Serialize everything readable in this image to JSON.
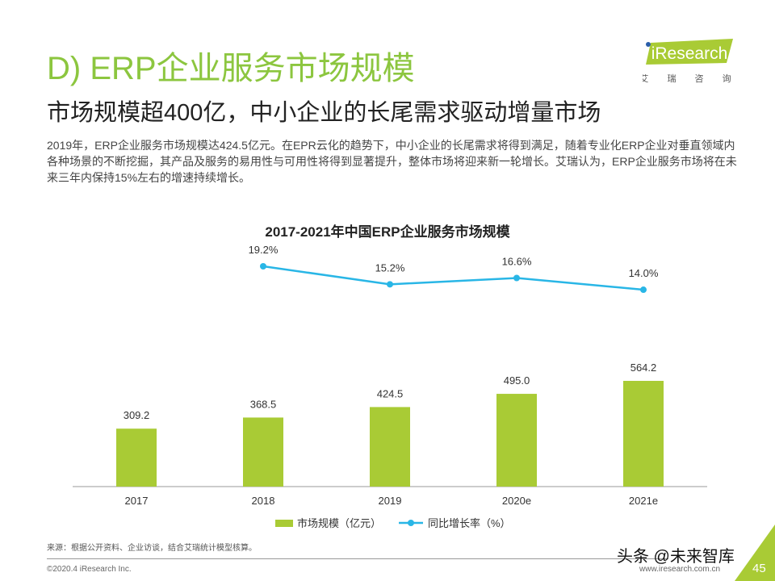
{
  "header": {
    "title": "D) ERP企业服务市场规模",
    "subtitle": "市场规模超400亿，中小企业的长尾需求驱动增量市场",
    "body": "2019年，ERP企业服务市场规模达424.5亿元。在EPR云化的趋势下，中小企业的长尾需求将得到满足，随着专业化ERP企业对垂直领域内各种场景的不断挖掘，其产品及服务的易用性与可用性将得到显著提升，整体市场将迎来新一轮增长。艾瑞认为，ERP企业服务市场将在未来三年内保持15%左右的增速持续增长。"
  },
  "logo": {
    "text": "iResearch",
    "subtext": "艾 瑞 咨 询"
  },
  "chart_data": {
    "type": "bar",
    "title": "2017-2021年中国ERP企业服务市场规模",
    "categories": [
      "2017",
      "2018",
      "2019",
      "2020e",
      "2021e"
    ],
    "series": [
      {
        "name": "市场规模（亿元）",
        "type": "bar",
        "values": [
          309.2,
          368.5,
          424.5,
          495.0,
          564.2
        ],
        "labels": [
          "309.2",
          "368.5",
          "424.5",
          "495.0",
          "564.2"
        ],
        "color": "#a9cb35"
      },
      {
        "name": "同比增长率（%）",
        "type": "line",
        "values": [
          null,
          19.2,
          15.2,
          16.6,
          14.0
        ],
        "labels": [
          "",
          "19.2%",
          "15.2%",
          "16.6%",
          "14.0%"
        ],
        "color": "#29b6e6"
      }
    ],
    "legend": "bottom",
    "grid": false
  },
  "footer": {
    "source": "来源：根据公开资料、企业访谈，结合艾瑞统计模型核算。",
    "copyright": "©2020.4 iResearch Inc.",
    "url": "www.iresearch.com.cn",
    "page": "45",
    "watermark": "头条 @未来智库"
  }
}
